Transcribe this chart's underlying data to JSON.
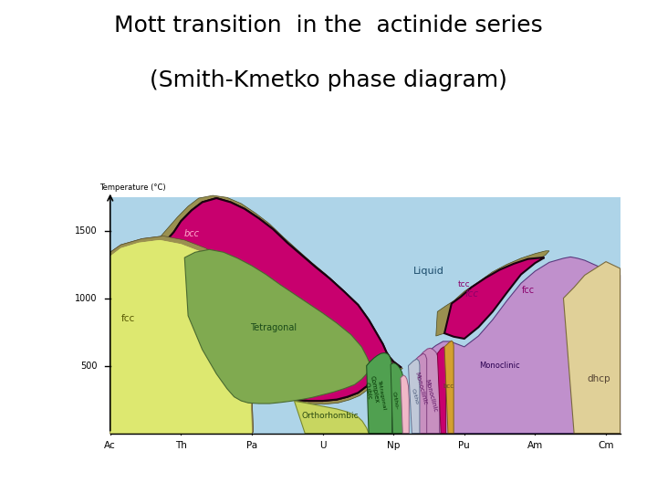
{
  "title_line1": "Mott transition  in the  actinide series",
  "title_line2": "(Smith-Kmetko phase diagram)",
  "title_fontsize": 18,
  "elements": [
    "Ac",
    "Th",
    "Pa",
    "U",
    "Np",
    "Pu",
    "Am",
    "Cm"
  ],
  "yticks": [
    500,
    1000,
    1500
  ],
  "ylabel": "Temperature (°C)",
  "bg": "#ffffff",
  "liquid_color": "#aed4e8",
  "fcc_color": "#dde870",
  "bcc_color": "#c8006e",
  "olive_color": "#9a9050",
  "tetragonal_color": "#80aa50",
  "orthorhombic_color": "#c8d660",
  "complex_cubic_color": "#50a050",
  "np_tetr_color": "#50a050",
  "np_ortho_color": "#f0b8c8",
  "am_fcc_color": "#c8006e",
  "am_purple_color": "#c090cc",
  "dhcp_color": "#e0d098",
  "pu_bcc_color": "#d4a030",
  "pu_fcc_color": "#c8006e",
  "pu_mono1_color": "#c890c0",
  "pu_mono2_color": "#c890c0",
  "pu_ortho_color": "#c0c8d8"
}
